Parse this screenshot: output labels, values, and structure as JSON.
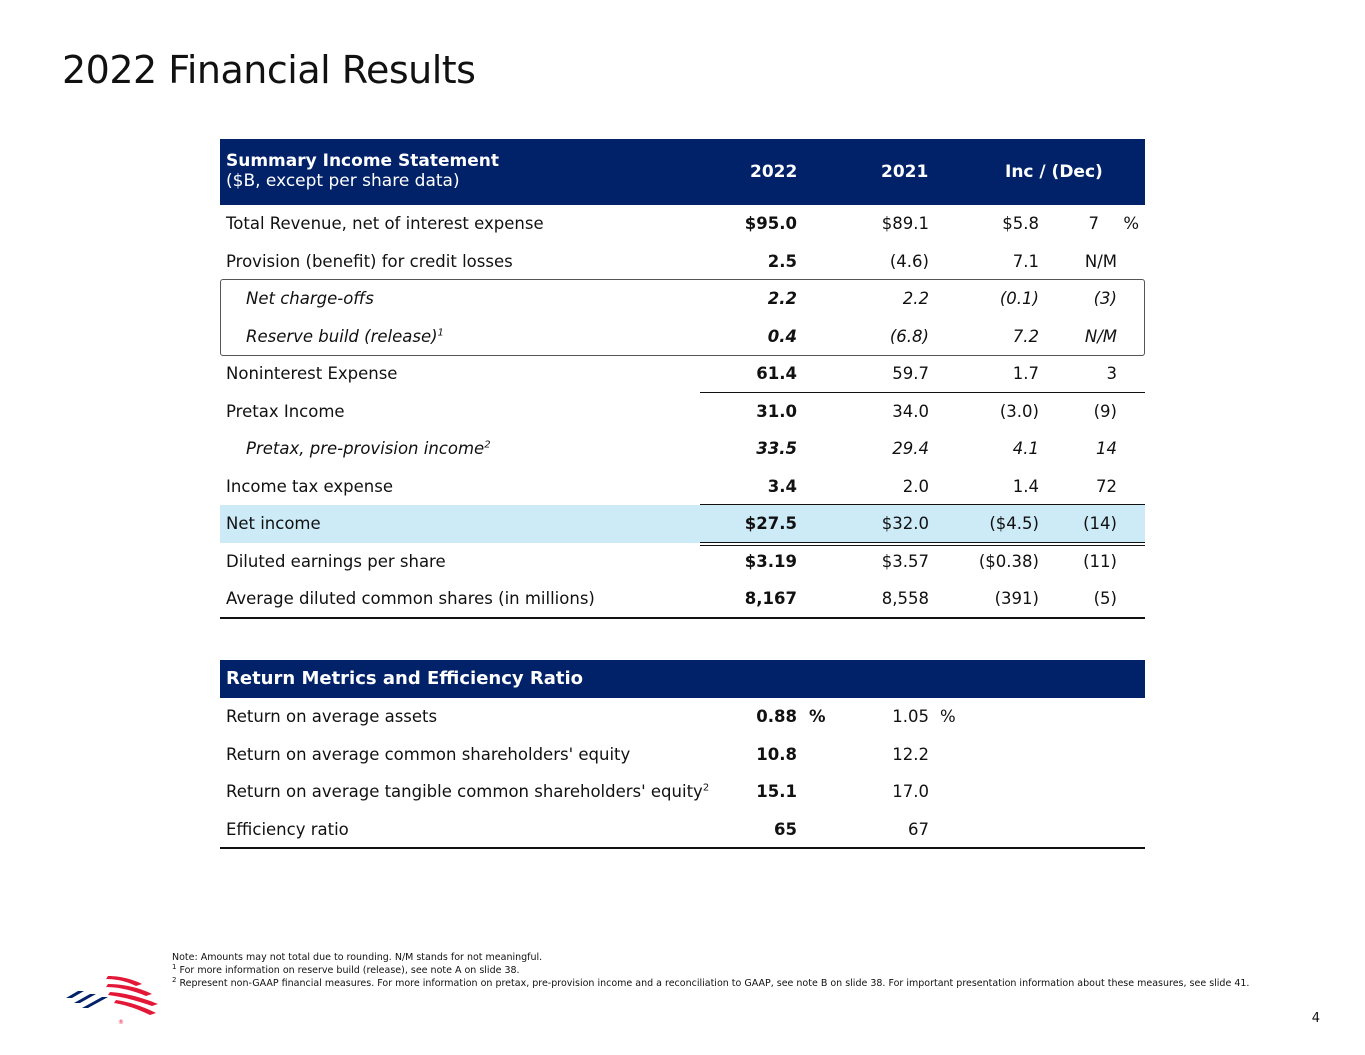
{
  "page_title": "2022 Financial Results",
  "income_statement": {
    "header_title": "Summary Income Statement",
    "header_subtitle": "($B, except per share data)",
    "col_2022": "2022",
    "col_2021": "2021",
    "col_change": "Inc / (Dec)",
    "rows": [
      {
        "label": "Total Revenue, net of interest expense",
        "sup": "",
        "v2022": "$95.0",
        "v2021": "$89.1",
        "inc": "$5.8",
        "pct": "7",
        "pct_sign": "%"
      },
      {
        "label": "Provision (benefit) for credit losses",
        "sup": "",
        "v2022": "2.5",
        "v2021": "(4.6)",
        "inc": "7.1",
        "pct": "N/M",
        "pct_sign": ""
      },
      {
        "label": "Net charge-offs",
        "sup": "",
        "v2022": "2.2",
        "v2021": "2.2",
        "inc": "(0.1)",
        "pct": "(3)",
        "pct_sign": ""
      },
      {
        "label": "Reserve build (release)",
        "sup": "1",
        "v2022": "0.4",
        "v2021": "(6.8)",
        "inc": "7.2",
        "pct": "N/M",
        "pct_sign": ""
      },
      {
        "label": "Noninterest Expense",
        "sup": "",
        "v2022": "61.4",
        "v2021": "59.7",
        "inc": "1.7",
        "pct": "3",
        "pct_sign": ""
      },
      {
        "label": "Pretax Income",
        "sup": "",
        "v2022": "31.0",
        "v2021": "34.0",
        "inc": "(3.0)",
        "pct": "(9)",
        "pct_sign": ""
      },
      {
        "label": "Pretax, pre-provision income",
        "sup": "2",
        "v2022": "33.5",
        "v2021": "29.4",
        "inc": "4.1",
        "pct": "14",
        "pct_sign": ""
      },
      {
        "label": "Income tax expense",
        "sup": "",
        "v2022": "3.4",
        "v2021": "2.0",
        "inc": "1.4",
        "pct": "72",
        "pct_sign": ""
      },
      {
        "label": "Net income",
        "sup": "",
        "v2022": "$27.5",
        "v2021": "$32.0",
        "inc": "($4.5)",
        "pct": "(14)",
        "pct_sign": ""
      },
      {
        "label": "Diluted earnings per share",
        "sup": "",
        "v2022": "$3.19",
        "v2021": "$3.57",
        "inc": "($0.38)",
        "pct": "(11)",
        "pct_sign": ""
      },
      {
        "label": "Average diluted common shares (in millions)",
        "sup": "",
        "v2022": "8,167",
        "v2021": "8,558",
        "inc": "(391)",
        "pct": "(5)",
        "pct_sign": ""
      }
    ]
  },
  "return_metrics": {
    "header_title": "Return Metrics and Efficiency Ratio",
    "pct_sign": "%",
    "rows": [
      {
        "label": "Return on average assets",
        "sup": "",
        "v2022": "0.88",
        "v2021": "1.05"
      },
      {
        "label": "Return on average common shareholders' equity",
        "sup": "",
        "v2022": "10.8",
        "v2021": "12.2"
      },
      {
        "label": "Return on average tangible common shareholders' equity",
        "sup": "2",
        "v2022": "15.1",
        "v2021": "17.0"
      },
      {
        "label": "Efficiency ratio",
        "sup": "",
        "v2022": "65",
        "v2021": "67"
      }
    ]
  },
  "notes": {
    "note_main": "Note: Amounts may not total due to rounding. N/M stands for not meaningful.",
    "note1_marker": "1",
    "note1": " For more information on reserve build (release), see note A on slide 38.",
    "note2_marker": "2",
    "note2": " Represent non-GAAP financial measures. For more information on pretax, pre-provision income and a reconciliation to GAAP, see note B on slide 38. For important presentation information about these measures, see slide 41."
  },
  "page_number": "4",
  "colors": {
    "header_navy": "#012169",
    "highlight_blue": "#cdeaf7",
    "logo_red": "#e31837"
  }
}
